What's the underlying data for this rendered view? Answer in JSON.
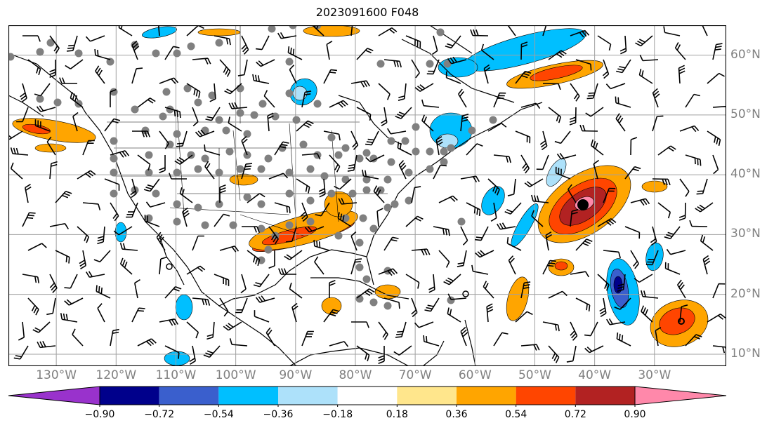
{
  "title": "2023091600 F048",
  "lat_labels": [
    "60°N",
    "50°N",
    "40°N",
    "30°N",
    "20°N",
    "10°N"
  ],
  "lat_values": [
    60,
    50,
    40,
    30,
    20,
    10
  ],
  "lon_labels": [
    "130°W",
    "120°W",
    "110°W",
    "100°W",
    "90°W",
    "80°W",
    "70°W",
    "60°W",
    "50°W",
    "40°W",
    "30°W"
  ],
  "lon_values": [
    -130,
    -120,
    -110,
    -100,
    -90,
    -80,
    -70,
    -60,
    -50,
    -40,
    -30
  ],
  "extent": {
    "lon": [
      -138,
      -18
    ],
    "lat": [
      8,
      65
    ]
  },
  "colorbar": {
    "ticks": [
      "−0.90",
      "−0.72",
      "−0.54",
      "−0.36",
      "−0.18",
      "0.18",
      "0.36",
      "0.54",
      "0.72",
      "0.90"
    ],
    "colors": [
      "#9932CC",
      "#00008B",
      "#3A5FCD",
      "#00BFFF",
      "#ADE1FA",
      "#FFFFFF",
      "#FFE68C",
      "#FFA500",
      "#FF4500",
      "#B22222",
      "#FF88AA"
    ]
  },
  "storm_center": {
    "lon": -44.5,
    "lat": 35
  }
}
